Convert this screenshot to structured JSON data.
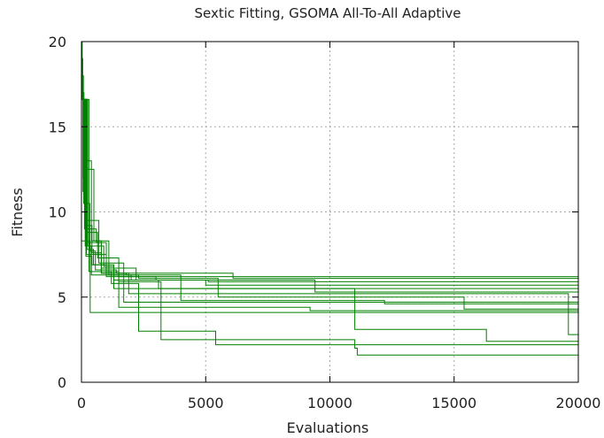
{
  "chart_data": {
    "type": "line",
    "title": "Sextic Fitting, GSOMA All-To-All Adaptive",
    "xlabel": "Evaluations",
    "ylabel": "Fitness",
    "xlim": [
      0,
      20000
    ],
    "ylim": [
      0,
      20
    ],
    "xticks": [
      "0",
      "5000",
      "10000",
      "15000",
      "20000"
    ],
    "yticks": [
      "0",
      "5",
      "10",
      "15",
      "20"
    ],
    "grid": true,
    "legend": "none",
    "line_color": "#008000",
    "series": [
      {
        "x": [
          0,
          30,
          60,
          150,
          400,
          1500,
          3200,
          11000,
          11100,
          16300,
          20000
        ],
        "y": [
          20,
          16.6,
          12,
          8,
          6.3,
          5.9,
          2.5,
          2.0,
          1.6,
          1.6,
          1.6
        ]
      },
      {
        "x": [
          0,
          50,
          120,
          300,
          1200,
          2300,
          5400,
          9000,
          11000,
          20000
        ],
        "y": [
          19,
          16.6,
          9,
          6.5,
          5.8,
          3.0,
          2.2,
          2.2,
          2.2,
          2.2
        ]
      },
      {
        "x": [
          0,
          80,
          200,
          1000,
          2200,
          3100,
          11000,
          15400,
          16300,
          20000
        ],
        "y": [
          18,
          16.6,
          7.5,
          6.2,
          6.0,
          5.5,
          3.1,
          3.1,
          2.4,
          2.4
        ]
      },
      {
        "x": [
          0,
          100,
          250,
          800,
          1900,
          4400,
          10000,
          19600,
          20000
        ],
        "y": [
          17,
          16.6,
          8.2,
          6.4,
          5.2,
          5.2,
          5.2,
          2.8,
          2.6
        ]
      },
      {
        "x": [
          0,
          120,
          500,
          1100,
          2300,
          5500,
          9000,
          15400,
          20000
        ],
        "y": [
          16.6,
          12.5,
          8.3,
          6.3,
          6.1,
          5.0,
          5.0,
          4.3,
          4.3
        ]
      },
      {
        "x": [
          0,
          200,
          400,
          800,
          2200,
          4000,
          8200,
          12200,
          20000
        ],
        "y": [
          16.6,
          13,
          8.3,
          6.7,
          6.2,
          4.8,
          4.8,
          4.6,
          4.6
        ]
      },
      {
        "x": [
          0,
          300,
          600,
          1000,
          1500,
          4600,
          7300,
          9200,
          20000
        ],
        "y": [
          16.6,
          9,
          8.2,
          6.5,
          4.4,
          4.4,
          4.4,
          4.2,
          4.2
        ]
      },
      {
        "x": [
          0,
          150,
          700,
          1700,
          4600,
          7900,
          20000
        ],
        "y": [
          16.6,
          9.5,
          7.0,
          4.7,
          4.7,
          4.7,
          4.7
        ]
      },
      {
        "x": [
          0,
          250,
          900,
          1300,
          3100,
          9000,
          20000
        ],
        "y": [
          16.6,
          8.0,
          6.8,
          5.5,
          5.5,
          5.5,
          5.5
        ]
      },
      {
        "x": [
          0,
          180,
          650,
          1500,
          3000,
          6000,
          9400,
          17600,
          20000
        ],
        "y": [
          16.6,
          8.8,
          7.3,
          6.2,
          6.0,
          6.0,
          5.3,
          5.3,
          5.3
        ]
      },
      {
        "x": [
          0,
          220,
          480,
          1000,
          2000,
          5100,
          12400,
          20000
        ],
        "y": [
          16.6,
          7.8,
          6.9,
          6.3,
          6.0,
          5.9,
          5.9,
          5.9
        ]
      },
      {
        "x": [
          0,
          130,
          420,
          800,
          1800,
          4000,
          11100,
          20000
        ],
        "y": [
          16.6,
          9.2,
          7.6,
          6.4,
          6.3,
          6.2,
          6.2,
          6.2
        ]
      },
      {
        "x": [
          0,
          90,
          330,
          560,
          1400,
          6100,
          20000
        ],
        "y": [
          16.6,
          10.5,
          7.7,
          6.6,
          6.4,
          6.1,
          6.1
        ]
      },
      {
        "x": [
          0,
          350,
          2100,
          20000
        ],
        "y": [
          8.3,
          4.1,
          4.1,
          4.1
        ]
      },
      {
        "x": [
          0,
          60,
          180,
          420,
          1300,
          5000,
          8900,
          20000
        ],
        "y": [
          16.6,
          11.2,
          7.4,
          6.9,
          6.0,
          5.7,
          5.7,
          5.7
        ]
      }
    ]
  }
}
